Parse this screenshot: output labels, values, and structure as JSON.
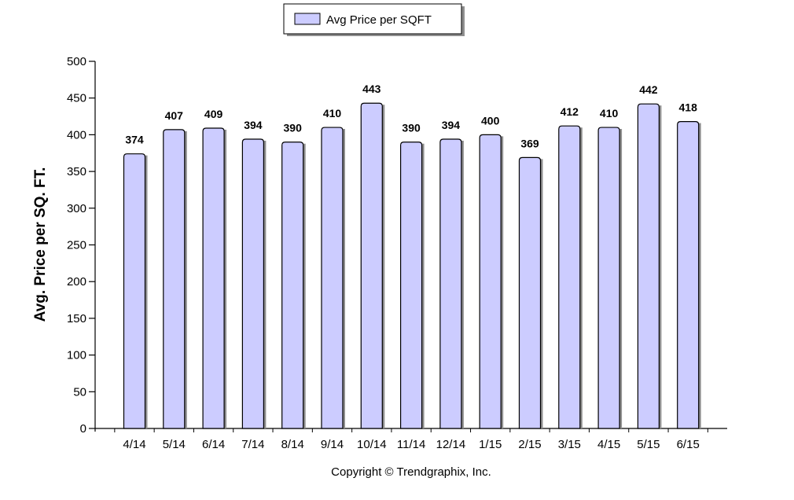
{
  "chart_data": {
    "type": "bar",
    "categories": [
      "4/14",
      "5/14",
      "6/14",
      "7/14",
      "8/14",
      "9/14",
      "10/14",
      "11/14",
      "12/14",
      "1/15",
      "2/15",
      "3/15",
      "4/15",
      "5/15",
      "6/15"
    ],
    "series": [
      {
        "name": "Avg Price per SQFT",
        "values": [
          374,
          407,
          409,
          394,
          390,
          410,
          443,
          390,
          394,
          400,
          369,
          412,
          410,
          442,
          418
        ],
        "color": "#ccccff"
      }
    ],
    "value_labels": [
      "374",
      "407",
      "409",
      "394",
      "390",
      "410",
      "443",
      "390",
      "394",
      "400",
      "369",
      "412",
      "410",
      "442",
      "418"
    ],
    "ylabel": "Avg. Price per SQ. FT.",
    "ylim": [
      0,
      500
    ],
    "y_ticks": [
      "0",
      "50",
      "100",
      "150",
      "200",
      "250",
      "300",
      "350",
      "400",
      "450",
      "500"
    ],
    "y_tick_values": [
      0,
      50,
      100,
      150,
      200,
      250,
      300,
      350,
      400,
      450,
      500
    ],
    "grid": false,
    "legend_position": "top-center",
    "bar_color": "#ccccff",
    "bar_outline_color": "#000000",
    "shadow_color": "#8e8e8e"
  },
  "legend": {
    "label": "Avg Price per SQFT"
  },
  "footer": {
    "copyright": "Copyright © Trendgraphix, Inc."
  }
}
